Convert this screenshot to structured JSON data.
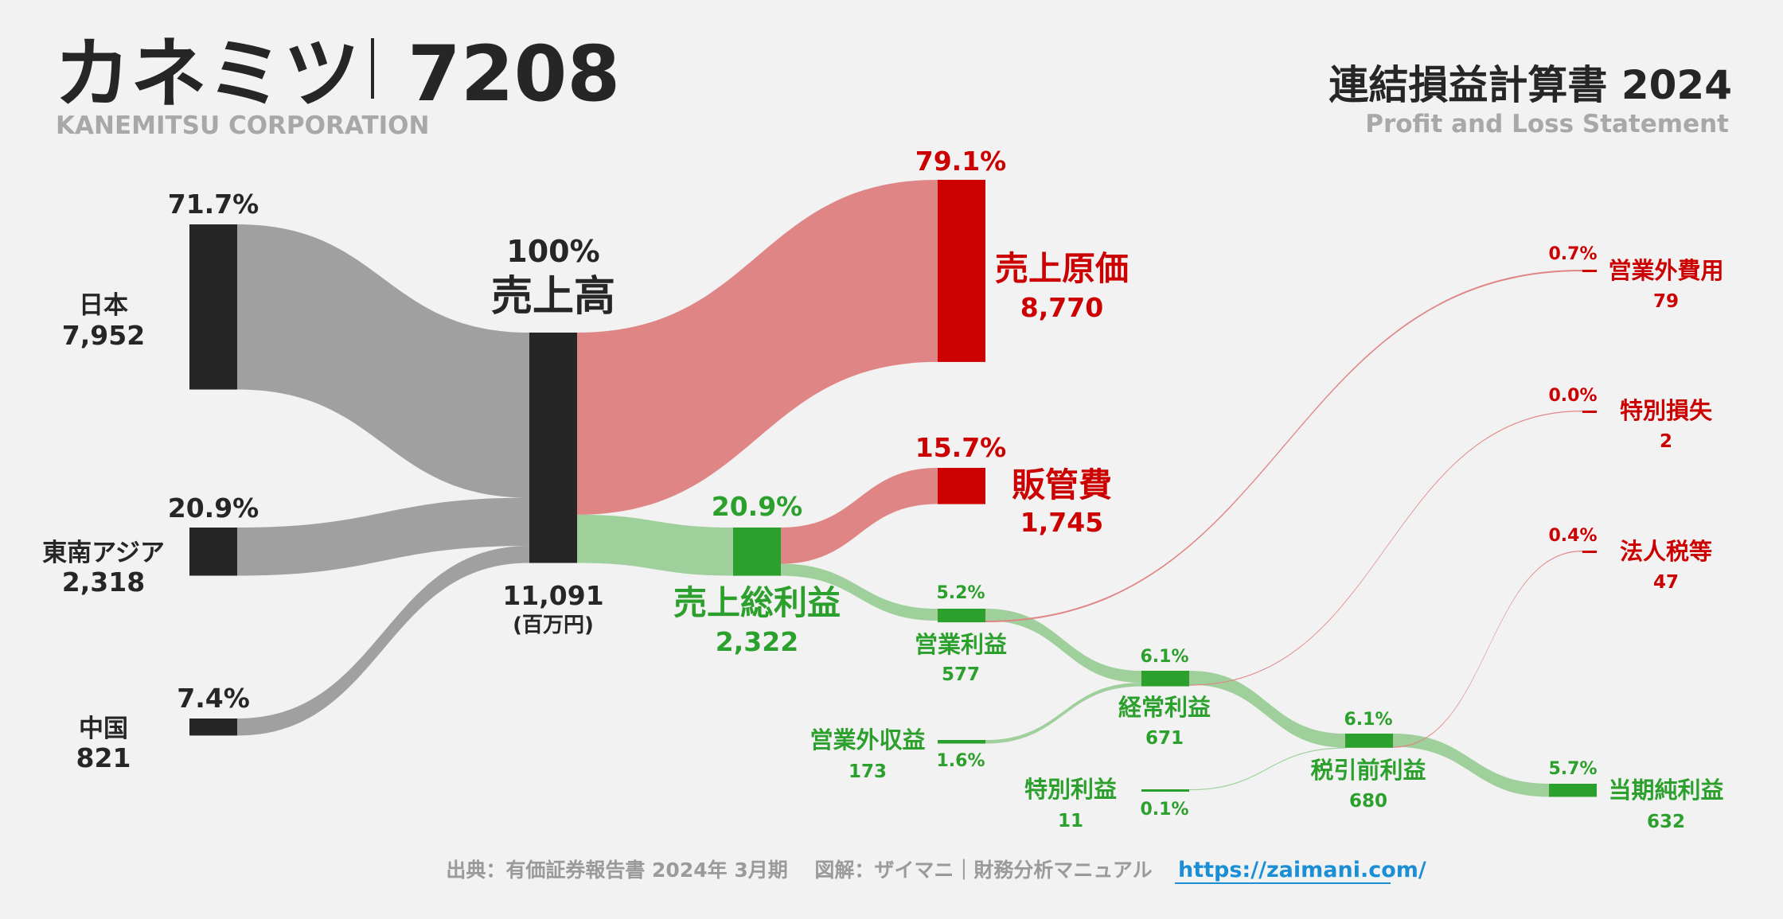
{
  "header": {
    "company": "カネミツ",
    "ticker": "7208",
    "company_en": "KANEMITSU CORPORATION",
    "statement_title": "連結損益計算書 2024",
    "statement_subtitle": "Profit and Loss Statement"
  },
  "footer": {
    "source": "出典：有価証券報告書 2024年 3月期　 図解：ザイマニ｜財務分析マニュアル",
    "url": "https://zaimani.com/"
  },
  "colors": {
    "dark": "#262626",
    "gray_flow": "#a0a0a0",
    "red": "#cc0000",
    "red_flow": "#e08585",
    "green": "#2ca02c",
    "green_flow": "#9fd09c",
    "link": "#1a8fd6"
  },
  "chart_data": {
    "type": "sankey",
    "unit": "(百万円)",
    "nodes": {
      "japan": {
        "label": "日本",
        "value": "7,952",
        "pct": "71.7%"
      },
      "sea": {
        "label": "東南アジア",
        "value": "2,318",
        "pct": "20.9%"
      },
      "china": {
        "label": "中国",
        "value": "821",
        "pct": "7.4%"
      },
      "revenue": {
        "label": "売上高",
        "value": "11,091",
        "pct": "100%"
      },
      "cogs": {
        "label": "売上原価",
        "value": "8,770",
        "pct": "79.1%"
      },
      "sga": {
        "label": "販管費",
        "value": "1,745",
        "pct": "15.7%"
      },
      "gross": {
        "label": "売上総利益",
        "value": "2,322",
        "pct": "20.9%"
      },
      "op": {
        "label": "営業利益",
        "value": "577",
        "pct": "5.2%"
      },
      "nonop_inc": {
        "label": "営業外収益",
        "value": "173",
        "pct": "1.6%"
      },
      "nonop_exp": {
        "label": "営業外費用",
        "value": "79",
        "pct": "0.7%"
      },
      "ordinary": {
        "label": "経常利益",
        "value": "671",
        "pct": "6.1%"
      },
      "special_gain": {
        "label": "特別利益",
        "value": "11",
        "pct": "0.1%"
      },
      "special_loss": {
        "label": "特別損失",
        "value": "2",
        "pct": "0.0%"
      },
      "pretax": {
        "label": "税引前利益",
        "value": "680",
        "pct": "6.1%"
      },
      "tax": {
        "label": "法人税等",
        "value": "47",
        "pct": "0.4%"
      },
      "net": {
        "label": "当期純利益",
        "value": "632",
        "pct": "5.7%"
      }
    },
    "links": [
      {
        "from": "japan",
        "to": "revenue",
        "value": 7952
      },
      {
        "from": "sea",
        "to": "revenue",
        "value": 2318
      },
      {
        "from": "china",
        "to": "revenue",
        "value": 821
      },
      {
        "from": "revenue",
        "to": "cogs",
        "value": 8770
      },
      {
        "from": "revenue",
        "to": "gross",
        "value": 2322
      },
      {
        "from": "gross",
        "to": "sga",
        "value": 1745
      },
      {
        "from": "gross",
        "to": "op",
        "value": 577
      },
      {
        "from": "op",
        "to": "ordinary",
        "value": 577
      },
      {
        "from": "op",
        "to": "nonop_exp",
        "value": 79
      },
      {
        "from": "nonop_inc",
        "to": "ordinary",
        "value": 173
      },
      {
        "from": "ordinary",
        "to": "pretax",
        "value": 671
      },
      {
        "from": "ordinary",
        "to": "special_loss",
        "value": 2
      },
      {
        "from": "special_gain",
        "to": "pretax",
        "value": 11
      },
      {
        "from": "pretax",
        "to": "net",
        "value": 632
      },
      {
        "from": "pretax",
        "to": "tax",
        "value": 47
      }
    ]
  }
}
